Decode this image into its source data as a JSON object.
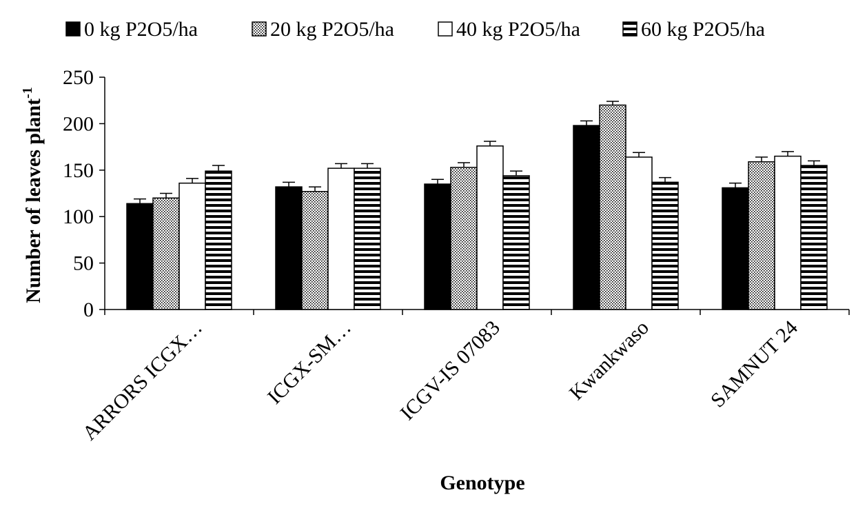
{
  "chart_data": {
    "type": "bar",
    "title": "",
    "xlabel": "Genotype",
    "ylabel": "Number of leaves plant",
    "ylabel_superscript": "-1",
    "ylim": [
      0,
      250
    ],
    "yticks": [
      0,
      50,
      100,
      150,
      200,
      250
    ],
    "categories": [
      "ARRORS ICGX…",
      "ICGX-SM…",
      "ICGV-IS 07083",
      "Kwankwaso",
      "SAMNUT 24"
    ],
    "series": [
      {
        "name": "0 kg P2O5/ha",
        "pattern": "solid-black",
        "values": [
          114,
          132,
          135,
          198,
          131
        ],
        "errors": [
          5,
          5,
          5,
          5,
          5
        ]
      },
      {
        "name": "20 kg P2O5/ha",
        "pattern": "dotted",
        "values": [
          120,
          127,
          153,
          220,
          159
        ],
        "errors": [
          5,
          5,
          5,
          4,
          5
        ]
      },
      {
        "name": "40 kg P2O5/ha",
        "pattern": "white",
        "values": [
          136,
          152,
          176,
          164,
          165
        ],
        "errors": [
          5,
          5,
          5,
          5,
          5
        ]
      },
      {
        "name": "60 kg P2O5/ha",
        "pattern": "horizontal-stripes",
        "values": [
          149,
          152,
          144,
          137,
          155
        ],
        "errors": [
          6,
          5,
          5,
          5,
          5
        ]
      }
    ],
    "legend_position": "top",
    "grid": false
  }
}
